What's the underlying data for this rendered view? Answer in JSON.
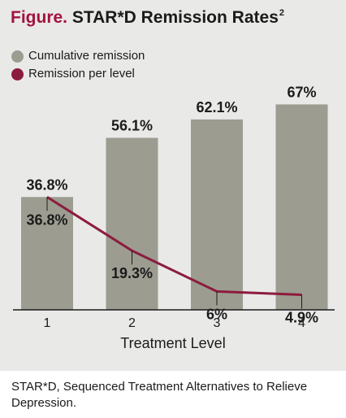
{
  "title": {
    "prefix": "Figure.",
    "text": "STAR*D Remission Rates",
    "superscript": "2"
  },
  "legend": [
    {
      "label": "Cumulative remission",
      "color": "#9c9c91"
    },
    {
      "label": "Remission per level",
      "color": "#8c1c3d"
    }
  ],
  "chart_data": {
    "type": "bar",
    "xlabel": "Treatment Level",
    "ylabel": "",
    "ylim": [
      0,
      75
    ],
    "categories": [
      "1",
      "2",
      "3",
      "4"
    ],
    "series": [
      {
        "name": "Cumulative remission",
        "type": "bar",
        "color": "#9c9c91",
        "values": [
          36.8,
          56.1,
          62.1,
          67
        ],
        "labels": [
          "36.8%",
          "56.1%",
          "62.1%",
          "67%"
        ]
      },
      {
        "name": "Remission per level",
        "type": "line",
        "color": "#8c1c3d",
        "values": [
          36.8,
          19.3,
          6,
          4.9
        ],
        "labels": [
          "36.8%",
          "19.3%",
          "6%",
          "4.9%"
        ]
      }
    ],
    "legend_position": "top-left",
    "grid": false
  },
  "footer": "STAR*D, Sequenced Treatment Alternatives to Relieve Depression."
}
